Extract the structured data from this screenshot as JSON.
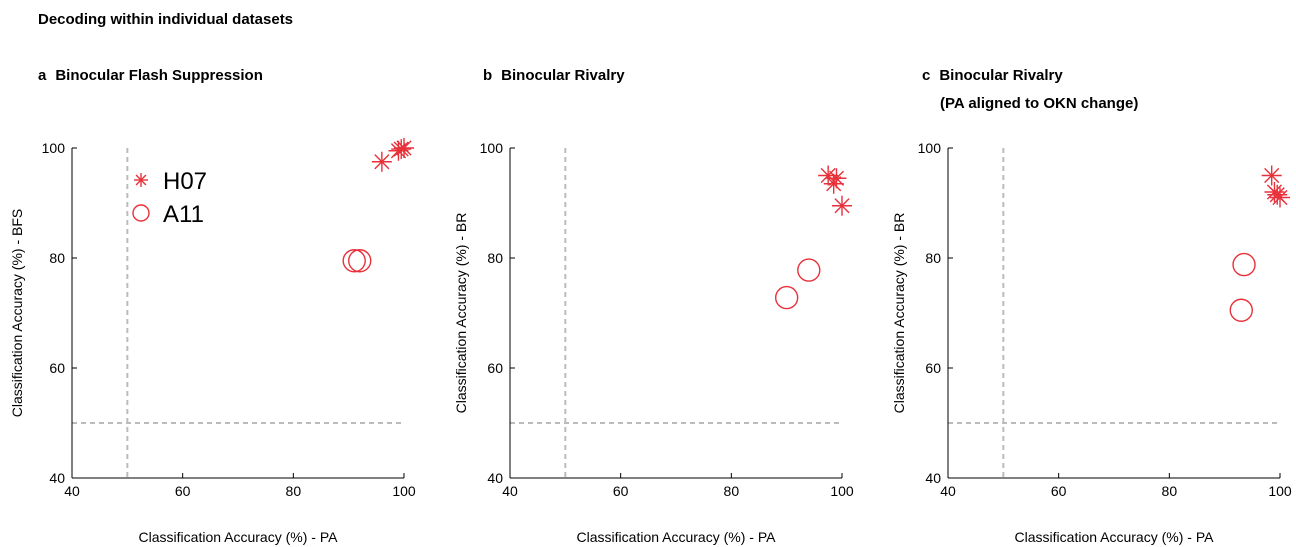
{
  "figure_title": "Decoding within individual datasets",
  "colors": {
    "marker": "#e8313a",
    "chance_line": "#bbbbbb",
    "axis": "#000000"
  },
  "legend": [
    {
      "label": "H07",
      "marker": "asterisk"
    },
    {
      "label": "A11",
      "marker": "circle"
    }
  ],
  "chart_data": [
    {
      "type": "scatter",
      "panel_letter": "a",
      "title": "Binocular Flash Suppression",
      "subtitle": "",
      "xlabel": "Classification Accuracy (%) - PA",
      "ylabel": "Classification Accuracy (%) - BFS",
      "xlim": [
        40,
        100
      ],
      "ylim": [
        40,
        100
      ],
      "xticks": [
        40,
        60,
        80,
        100
      ],
      "yticks": [
        40,
        60,
        80,
        100
      ],
      "chance": 50,
      "series": [
        {
          "name": "H07",
          "marker": "asterisk",
          "points": [
            [
              96,
              97.5
            ],
            [
              99,
              99.5
            ],
            [
              100,
              100
            ],
            [
              99.5,
              99.8
            ]
          ]
        },
        {
          "name": "A11",
          "marker": "circle",
          "points": [
            [
              91,
              79.5
            ],
            [
              92,
              79.5
            ]
          ]
        }
      ]
    },
    {
      "type": "scatter",
      "panel_letter": "b",
      "title": "Binocular Rivalry",
      "subtitle": "",
      "xlabel": "Classification Accuracy (%) - PA",
      "ylabel": "Classification Accuracy (%) - BR",
      "xlim": [
        40,
        100
      ],
      "ylim": [
        40,
        100
      ],
      "xticks": [
        40,
        60,
        80,
        100
      ],
      "yticks": [
        40,
        60,
        80,
        100
      ],
      "chance": 50,
      "series": [
        {
          "name": "H07",
          "marker": "asterisk",
          "points": [
            [
              97.5,
              95
            ],
            [
              98.5,
              93.5
            ],
            [
              99,
              94.5
            ],
            [
              100,
              89.5
            ]
          ]
        },
        {
          "name": "A11",
          "marker": "circle",
          "points": [
            [
              94,
              77.8
            ],
            [
              90,
              72.8
            ]
          ]
        }
      ]
    },
    {
      "type": "scatter",
      "panel_letter": "c",
      "title": "Binocular Rivalry",
      "subtitle": "(PA aligned to OKN change)",
      "xlabel": "Classification Accuracy (%) - PA",
      "ylabel": "Classification Accuracy (%) - BR",
      "xlim": [
        40,
        100
      ],
      "ylim": [
        40,
        100
      ],
      "xticks": [
        40,
        60,
        80,
        100
      ],
      "yticks": [
        40,
        60,
        80,
        100
      ],
      "chance": 50,
      "series": [
        {
          "name": "H07",
          "marker": "asterisk",
          "points": [
            [
              98.5,
              95
            ],
            [
              99,
              92
            ],
            [
              99.5,
              91.5
            ],
            [
              100,
              91
            ]
          ]
        },
        {
          "name": "A11",
          "marker": "circle",
          "points": [
            [
              93.5,
              78.8
            ],
            [
              93,
              70.5
            ]
          ]
        }
      ]
    }
  ]
}
